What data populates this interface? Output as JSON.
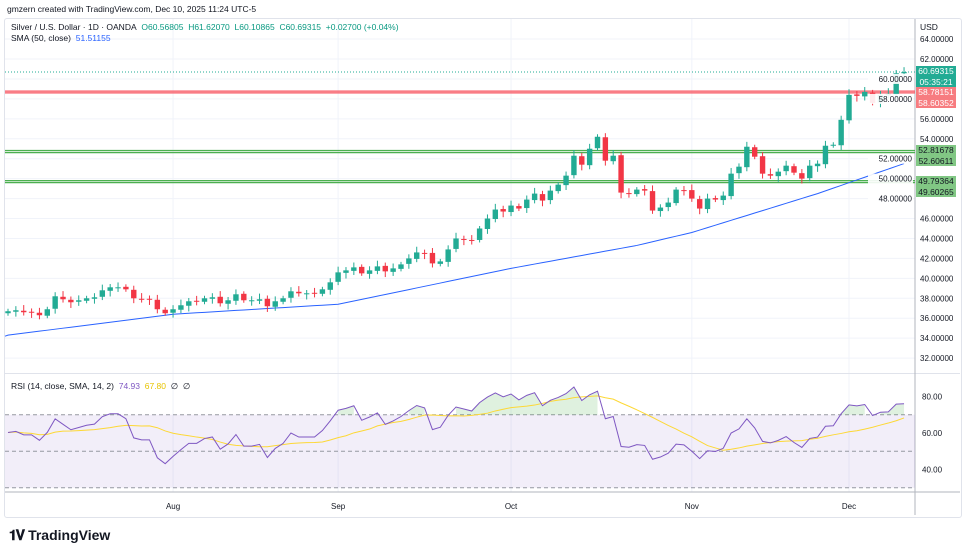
{
  "credit": "gmzern created with TradingView.com, Dec 10, 2025 11:24 UTC-5",
  "legend": {
    "symbol": "Silver / U.S. Dollar · 1D · OANDA",
    "open": "O60.56805",
    "high": "H61.62070",
    "low": "L60.10865",
    "close": "C60.69315",
    "change": "+0.02700 (+0.04%)",
    "sma_label": "SMA (50, close)",
    "sma_value": "51.51155",
    "rsi_label": "RSI (14, close, SMA, 14, 2)",
    "rsi_value": "74.93",
    "rsi_sma_value": "67.80",
    "rsi_extra1": "∅",
    "rsi_extra2": "∅"
  },
  "currency": "USD",
  "tags": {
    "last_price": "60.69315",
    "countdown": "05:35:21",
    "red1": "58.78151",
    "red2": "58.60352",
    "green1": "52.81678",
    "green2": "52.60611",
    "green3": "49.79364",
    "green4": "49.60265"
  },
  "colors": {
    "up": "#22ab94",
    "down": "#f23645",
    "sma": "#2962ff",
    "rsi": "#7e57c2",
    "rsi_sma": "#fdd835",
    "red_line": "#f7525f",
    "green_line": "#4caf50"
  },
  "logo": "TradingView",
  "chart_data": {
    "type": "candlestick",
    "title": "Silver / U.S. Dollar · 1D · OANDA",
    "price_ticks": [
      "64.00000",
      "62.00000",
      "60.00000",
      "58.00000",
      "56.00000",
      "54.00000",
      "52.00000",
      "50.00000",
      "48.00000",
      "46.00000",
      "44.00000",
      "42.00000",
      "40.00000",
      "38.00000",
      "36.00000",
      "34.00000",
      "32.00000"
    ],
    "ylim": [
      31,
      65
    ],
    "rsi_ticks": [
      "80.00",
      "60.00",
      "40.00"
    ],
    "rsi_levels": [
      70,
      50,
      30
    ],
    "time_labels": [
      {
        "label": "Aug",
        "index": 21
      },
      {
        "label": "Sep",
        "index": 42
      },
      {
        "label": "Oct",
        "index": 64
      },
      {
        "label": "Nov",
        "index": 87
      },
      {
        "label": "Dec",
        "index": 107
      }
    ],
    "close": [
      36.7,
      36.8,
      36.6,
      36.6,
      36.3,
      36.9,
      38.2,
      37.9,
      37.6,
      37.8,
      38.0,
      38.1,
      38.8,
      39.1,
      39.1,
      38.9,
      38.0,
      37.9,
      37.9,
      36.9,
      36.5,
      36.9,
      37.3,
      37.7,
      37.7,
      38.0,
      38.1,
      37.5,
      37.8,
      38.4,
      37.8,
      37.8,
      37.9,
      37.2,
      37.7,
      38.0,
      38.7,
      38.5,
      38.5,
      38.5,
      38.9,
      39.6,
      40.6,
      40.8,
      41.1,
      40.5,
      40.8,
      41.2,
      40.7,
      41.0,
      41.4,
      42.0,
      42.6,
      42.5,
      41.5,
      41.7,
      42.9,
      44.0,
      43.9,
      43.8,
      45.0,
      46.0,
      46.9,
      46.7,
      47.3,
      47.0,
      47.9,
      48.5,
      47.8,
      48.8,
      49.4,
      50.3,
      52.3,
      51.4,
      53.0,
      54.2,
      51.8,
      52.3,
      48.6,
      48.5,
      48.9,
      48.8,
      46.8,
      47.1,
      47.6,
      48.9,
      48.8,
      48.0,
      47.0,
      48.0,
      47.9,
      48.3,
      50.5,
      51.2,
      53.2,
      52.2,
      50.5,
      50.3,
      50.7,
      51.3,
      50.6,
      50.0,
      51.3,
      51.5,
      53.3,
      53.4,
      55.9,
      58.4,
      58.3,
      58.7,
      57.6,
      58.4,
      58.5,
      60.57,
      60.69
    ],
    "sma50_anchors": [
      {
        "index": 0,
        "value": 34.3
      },
      {
        "index": 21,
        "value": 36.4
      },
      {
        "index": 42,
        "value": 37.4
      },
      {
        "index": 64,
        "value": 41.0
      },
      {
        "index": 80,
        "value": 43.3
      },
      {
        "index": 87,
        "value": 44.6
      },
      {
        "index": 103,
        "value": 48.5
      },
      {
        "index": 114,
        "value": 51.51
      }
    ],
    "horizontal_lines": [
      {
        "value": 58.78151,
        "color": "red"
      },
      {
        "value": 58.60352,
        "color": "red"
      },
      {
        "value": 52.81678,
        "color": "green"
      },
      {
        "value": 52.60611,
        "color": "green"
      },
      {
        "value": 49.79364,
        "color": "green"
      },
      {
        "value": 49.60265,
        "color": "green"
      }
    ],
    "last_price": 60.69315
  }
}
